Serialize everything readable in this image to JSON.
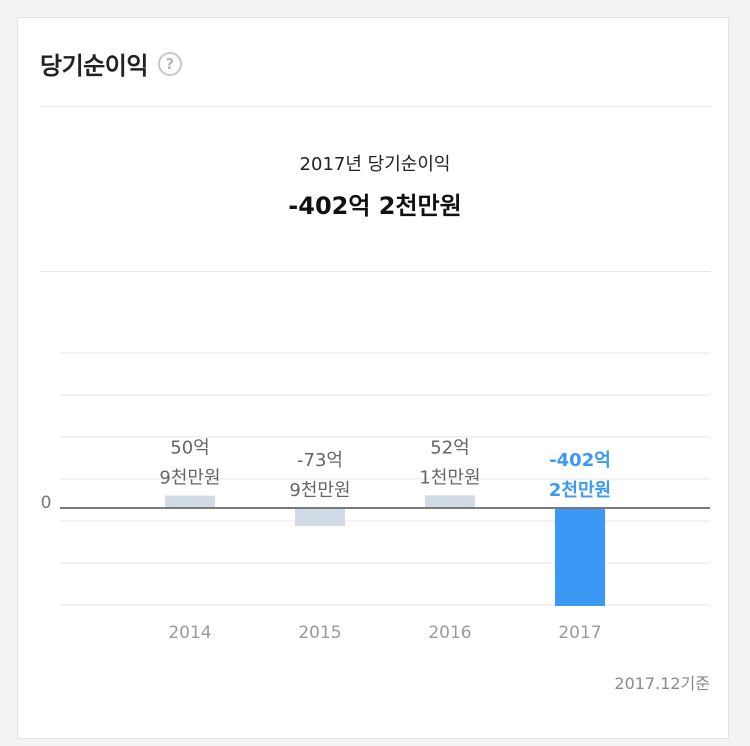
{
  "title": "당기순이익",
  "help_icon": "?",
  "summary": {
    "label": "2017년 당기순이익",
    "value": "-402억 2천만원"
  },
  "basis": "2017.12기준",
  "colors": {
    "bar_default": "#d1dae5",
    "bar_highlight": "#3b98f5",
    "label_default": "#666666",
    "label_highlight": "#3b98f5",
    "zero_line": "#77797d"
  },
  "chart_data": {
    "type": "bar",
    "title": "",
    "xlabel": "",
    "ylabel": "",
    "categories": [
      "2014",
      "2015",
      "2016",
      "2017"
    ],
    "values": [
      50.9,
      -73.9,
      52.1,
      -402.2
    ],
    "value_labels": [
      [
        "50억",
        "9천만원"
      ],
      [
        "-73억",
        "9천만원"
      ],
      [
        "52억",
        "1천만원"
      ],
      [
        "-402억",
        "2천만원"
      ]
    ],
    "y_tick_labels": [
      "0"
    ],
    "highlight_index": 3,
    "unit": "억원",
    "grid": true,
    "legend": "none"
  }
}
